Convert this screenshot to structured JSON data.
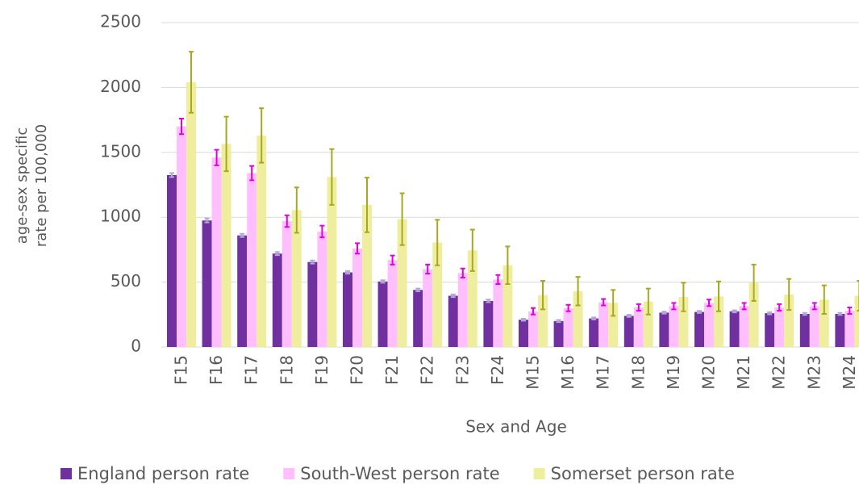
{
  "chart_data": {
    "type": "bar",
    "xlabel": "Sex and Age",
    "ylabel": [
      "age-sex specific",
      "rate per 100,000"
    ],
    "categories": [
      "F15",
      "F16",
      "F17",
      "F18",
      "F19",
      "F20",
      "F21",
      "F22",
      "F23",
      "F24",
      "M15",
      "M16",
      "M17",
      "M18",
      "M19",
      "M20",
      "M21",
      "M22",
      "M23",
      "M24"
    ],
    "series": [
      {
        "name": "England person rate",
        "color": "#7030a0",
        "error_color": "#b0a8d8",
        "values": [
          1325,
          975,
          860,
          720,
          655,
          575,
          505,
          440,
          395,
          355,
          210,
          200,
          220,
          240,
          265,
          270,
          275,
          260,
          255,
          255
        ],
        "errors": [
          15,
          15,
          12,
          12,
          12,
          10,
          10,
          10,
          10,
          10,
          8,
          8,
          8,
          8,
          8,
          8,
          8,
          8,
          8,
          8
        ]
      },
      {
        "name": "South-West person rate",
        "color": "#ffbfff",
        "error_color": "#e000e0",
        "values": [
          1700,
          1460,
          1340,
          970,
          890,
          760,
          670,
          600,
          570,
          520,
          275,
          300,
          345,
          305,
          315,
          340,
          315,
          305,
          315,
          280
        ],
        "errors": [
          60,
          60,
          55,
          45,
          45,
          40,
          35,
          35,
          35,
          35,
          25,
          25,
          25,
          25,
          25,
          25,
          25,
          25,
          25,
          25
        ]
      },
      {
        "name": "Somerset person rate",
        "color": "#eeee9e",
        "error_color": "#a8a820",
        "values": [
          2040,
          1565,
          1630,
          1055,
          1310,
          1095,
          985,
          805,
          745,
          630,
          400,
          430,
          340,
          350,
          385,
          390,
          495,
          405,
          365,
          395
        ],
        "errors": [
          235,
          210,
          210,
          175,
          215,
          210,
          200,
          175,
          160,
          145,
          110,
          110,
          100,
          100,
          110,
          115,
          140,
          120,
          110,
          115
        ]
      }
    ],
    "ylim": [
      0,
      2500
    ],
    "yticks": [
      0,
      500,
      1000,
      1500,
      2000,
      2500
    ],
    "grid": true
  }
}
